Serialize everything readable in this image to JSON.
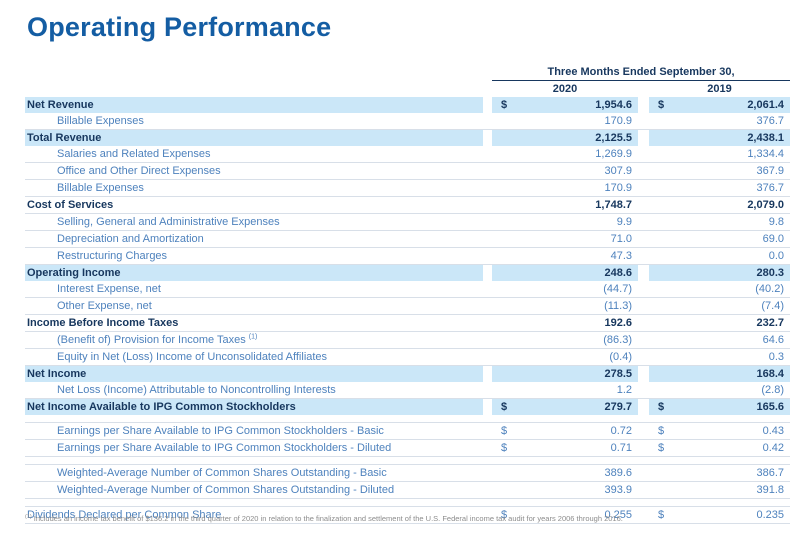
{
  "title": "Operating Performance",
  "colors": {
    "title_blue": "#145DA3",
    "heading_navy": "#17375E",
    "body_steel_blue": "#4E82BD",
    "row_highlight": "#CBE7F8",
    "separator_line": "#D8DFE8"
  },
  "table": {
    "period_header": "Three Months Ended September 30,",
    "col_2020": "2020",
    "col_2019": "2019",
    "rows": [
      {
        "label": "Net Revenue",
        "usd": "$",
        "v2020": "1,954.6",
        "v2019": "2,061.4"
      },
      {
        "label": "Billable Expenses",
        "usd": "",
        "v2020": "170.9",
        "v2019": "376.7"
      },
      {
        "label": "Total Revenue",
        "usd": "",
        "v2020": "2,125.5",
        "v2019": "2,438.1"
      },
      {
        "label": "Salaries and Related Expenses",
        "usd": "",
        "v2020": "1,269.9",
        "v2019": "1,334.4"
      },
      {
        "label": "Office and Other Direct Expenses",
        "usd": "",
        "v2020": "307.9",
        "v2019": "367.9"
      },
      {
        "label": "Billable Expenses",
        "usd": "",
        "v2020": "170.9",
        "v2019": "376.7"
      },
      {
        "label": "Cost of Services",
        "usd": "",
        "v2020": "1,748.7",
        "v2019": "2,079.0"
      },
      {
        "label": "Selling, General and Administrative Expenses",
        "usd": "",
        "v2020": "9.9",
        "v2019": "9.8"
      },
      {
        "label": "Depreciation and Amortization",
        "usd": "",
        "v2020": "71.0",
        "v2019": "69.0"
      },
      {
        "label": "Restructuring Charges",
        "usd": "",
        "v2020": "47.3",
        "v2019": "0.0"
      },
      {
        "label": "Operating Income",
        "usd": "",
        "v2020": "248.6",
        "v2019": "280.3"
      },
      {
        "label": "Interest Expense, net",
        "usd": "",
        "v2020": "(44.7)",
        "v2019": "(40.2)"
      },
      {
        "label": "Other Expense, net",
        "usd": "",
        "v2020": "(11.3)",
        "v2019": "(7.4)"
      },
      {
        "label": "Income Before Income Taxes",
        "usd": "",
        "v2020": "192.6",
        "v2019": "232.7"
      },
      {
        "label": "(Benefit of) Provision for Income Taxes",
        "sup": "(1)",
        "usd": "",
        "v2020": "(86.3)",
        "v2019": "64.6"
      },
      {
        "label": "Equity in Net (Loss) Income of Unconsolidated Affiliates",
        "usd": "",
        "v2020": "(0.4)",
        "v2019": "0.3"
      },
      {
        "label": "Net Income",
        "usd": "",
        "v2020": "278.5",
        "v2019": "168.4"
      },
      {
        "label": "Net Loss (Income) Attributable to Noncontrolling Interests",
        "usd": "",
        "v2020": "1.2",
        "v2019": "(2.8)"
      },
      {
        "label": "Net Income Available to IPG Common Stockholders",
        "usd": "$",
        "v2020": "279.7",
        "v2019": "165.6"
      },
      {
        "label": "Earnings per Share Available to IPG Common Stockholders - Basic",
        "usd": "$",
        "v2020": "0.72",
        "v2019": "0.43"
      },
      {
        "label": "Earnings per Share Available to IPG Common Stockholders - Diluted",
        "usd": "$",
        "v2020": "0.71",
        "v2019": "0.42"
      },
      {
        "label": "Weighted-Average Number of Common Shares Outstanding - Basic",
        "usd": "",
        "v2020": "389.6",
        "v2019": "386.7"
      },
      {
        "label": "Weighted-Average Number of Common Shares Outstanding - Diluted",
        "usd": "",
        "v2020": "393.9",
        "v2019": "391.8"
      },
      {
        "label": "Dividends Declared per Common Share",
        "usd": "$",
        "v2020": "0.255",
        "v2019": "0.235"
      }
    ]
  },
  "footnote": {
    "sup": "(1)",
    "text": "Includes an income tax benefit of $136.2 in the third quarter of 2020 in relation to the finalization and settlement of the U.S. Federal income tax audit for years 2006 through 2016."
  }
}
